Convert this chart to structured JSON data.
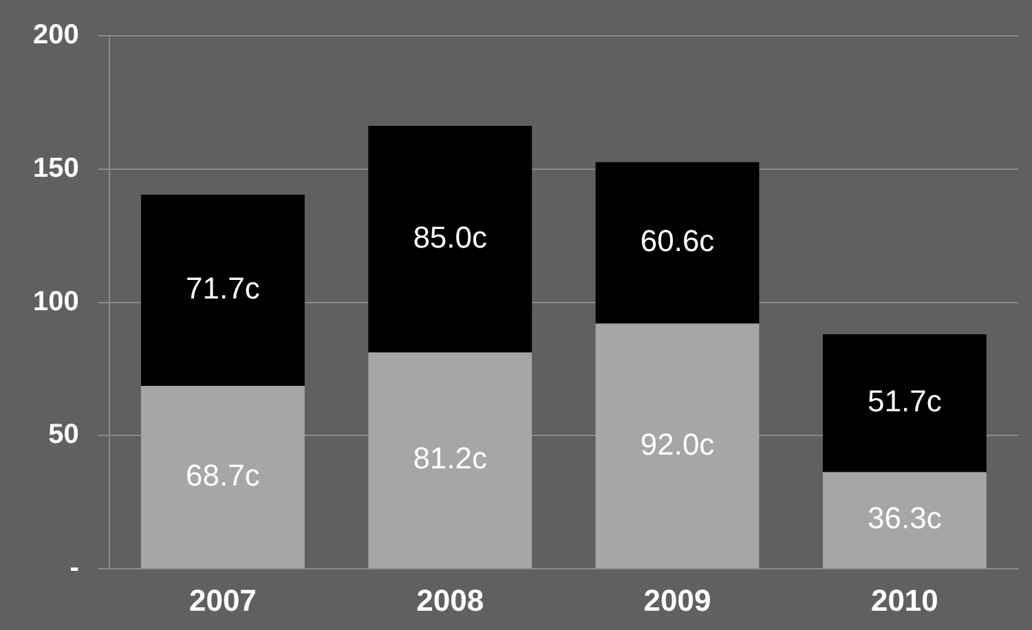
{
  "chart_data": {
    "type": "bar",
    "stacked": true,
    "categories": [
      "2007",
      "2008",
      "2009",
      "2010"
    ],
    "series": [
      {
        "color": "#a6a6a6",
        "values": [
          68.7,
          81.2,
          92.0,
          36.3
        ],
        "value_labels": [
          "68.7c",
          "81.2c",
          "92.0c",
          "36.3c"
        ]
      },
      {
        "color": "#000000",
        "values": [
          71.7,
          85.0,
          60.6,
          51.7
        ],
        "value_labels": [
          "71.7c",
          "85.0c",
          "60.6c",
          "51.7c"
        ]
      }
    ],
    "ylim": [
      0,
      200
    ],
    "yticks": [
      {
        "value": 0,
        "label": "-"
      },
      50,
      100,
      150,
      200
    ],
    "grid": "y",
    "legend": false
  }
}
